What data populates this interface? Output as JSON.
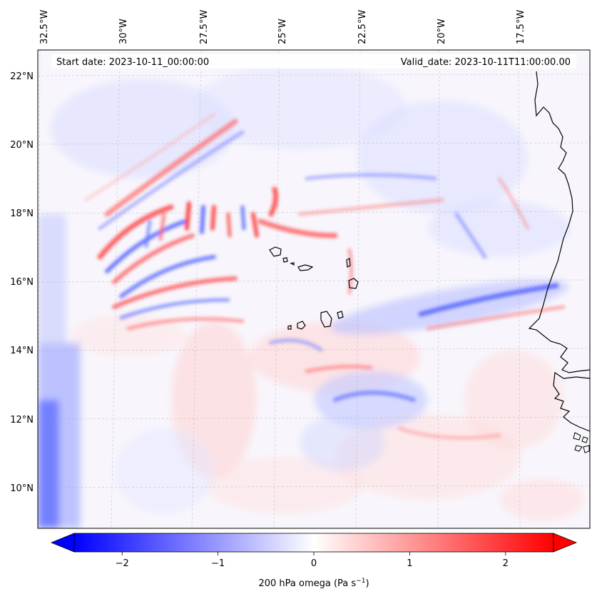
{
  "header": {
    "start_date": "Start date: 2023-10-11_00:00:00",
    "valid_date": "Valid_date: 2023-10-11T11:00:00.00"
  },
  "map": {
    "lon_labels": [
      "32.5°W",
      "30°W",
      "27.5°W",
      "25°W",
      "22.5°W",
      "20°W",
      "17.5°W"
    ],
    "lat_labels": [
      "22°N",
      "20°N",
      "18°N",
      "16°N",
      "14°N",
      "12°N",
      "10°N"
    ],
    "gridlines": true,
    "colormap": "bwr",
    "colors": {
      "negative": "#0000ff",
      "zero": "#ffffff",
      "positive": "#ff0000",
      "coast": "#000000"
    }
  },
  "colorbar": {
    "label_prefix": "200 hPa omega (Pa s",
    "label_exp": "−1",
    "label_suffix": ")",
    "ticks": [
      {
        "value": -2,
        "label": "−2"
      },
      {
        "value": -1,
        "label": "−1"
      },
      {
        "value": 0,
        "label": "0"
      },
      {
        "value": 1,
        "label": "1"
      },
      {
        "value": 2,
        "label": "2"
      }
    ],
    "range": [
      -2.5,
      2.5
    ],
    "extend": "both"
  }
}
